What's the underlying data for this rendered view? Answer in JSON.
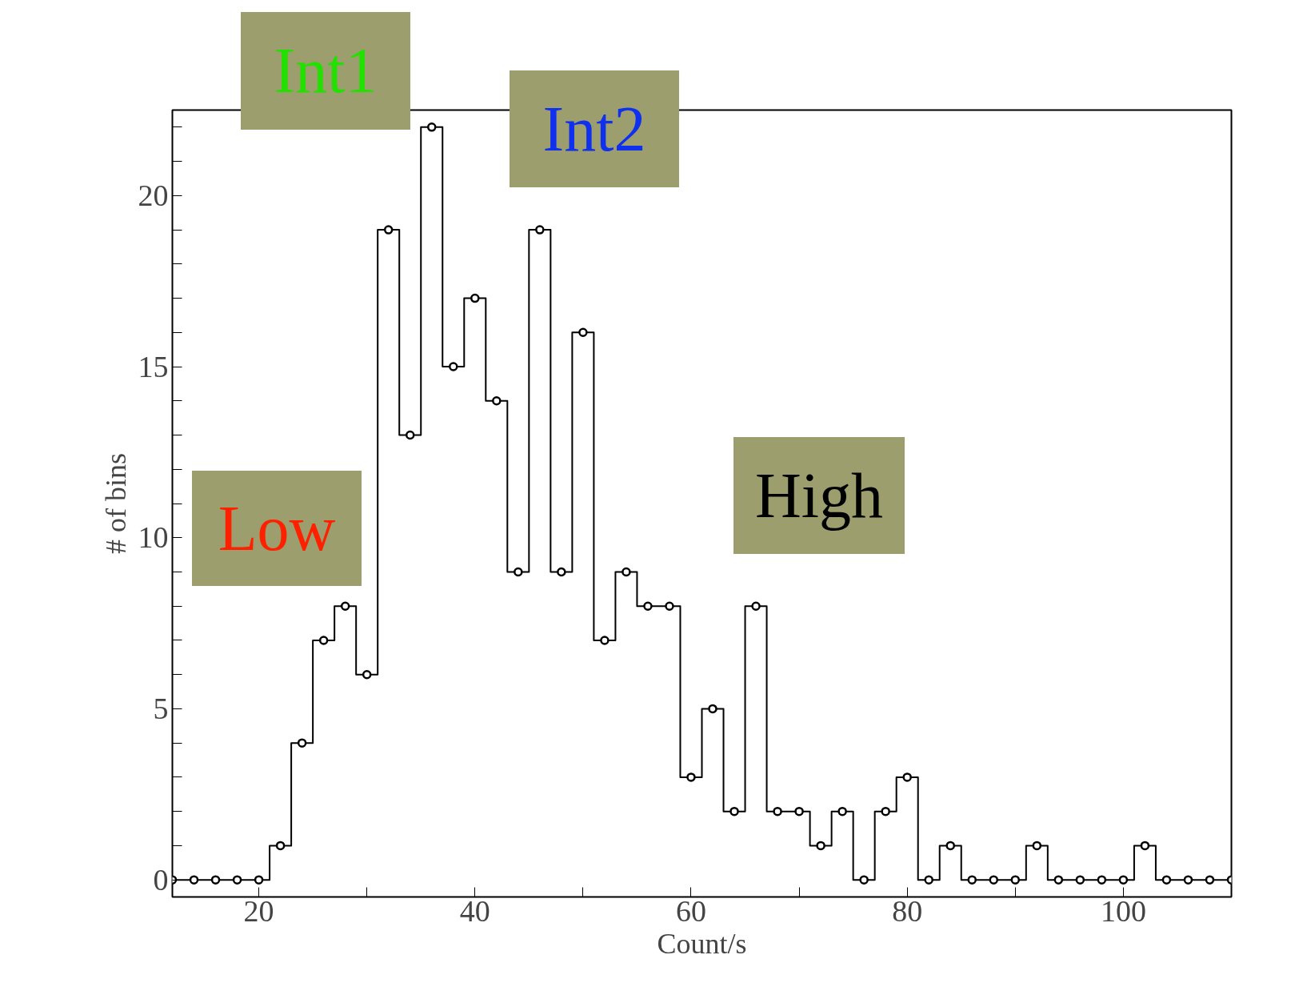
{
  "chart_data": {
    "type": "step",
    "xlabel": "Count/s",
    "ylabel": "# of bins",
    "x": [
      12,
      14,
      16,
      18,
      20,
      22,
      24,
      26,
      28,
      30,
      32,
      34,
      36,
      38,
      40,
      42,
      44,
      46,
      48,
      50,
      52,
      54,
      56,
      58,
      60,
      62,
      64,
      66,
      68,
      70,
      72,
      74,
      76,
      78,
      80,
      82,
      84,
      86,
      88,
      90,
      92,
      94,
      96,
      98,
      100,
      102,
      104,
      106,
      108,
      110
    ],
    "series": [
      {
        "color": "#000000",
        "values": [
          0,
          0,
          0,
          0,
          0,
          1,
          4,
          7,
          8,
          6,
          19,
          13,
          22,
          15,
          17,
          14,
          9,
          19,
          9,
          16,
          7,
          9,
          8,
          8,
          3,
          5,
          2,
          8,
          2,
          2,
          1,
          2,
          0,
          2,
          3,
          0,
          1,
          0,
          0,
          0,
          1,
          0,
          0,
          0,
          0,
          1,
          0,
          0,
          0,
          0
        ]
      }
    ],
    "marker": "circle",
    "line_style": "solid",
    "grid": false,
    "xlim": [
      12,
      110
    ],
    "ylim": [
      -0.5,
      22.5
    ],
    "xticks": [
      20,
      {
        "value": 30,
        "label": null
      },
      40,
      {
        "value": 50,
        "label": null
      },
      60,
      {
        "value": 70,
        "label": null
      },
      80,
      {
        "value": 90,
        "label": null
      },
      100,
      {
        "value": 110,
        "label": null
      }
    ],
    "yticks": [
      0,
      {
        "value": 1,
        "label": null
      },
      {
        "value": 2,
        "label": null
      },
      {
        "value": 3,
        "label": null
      },
      {
        "value": 4,
        "label": null
      },
      5,
      {
        "value": 6,
        "label": null
      },
      {
        "value": 7,
        "label": null
      },
      {
        "value": 8,
        "label": null
      },
      {
        "value": 9,
        "label": null
      },
      10,
      {
        "value": 11,
        "label": null
      },
      {
        "value": 12,
        "label": null
      },
      {
        "value": 13,
        "label": null
      },
      {
        "value": 14,
        "label": null
      },
      15,
      {
        "value": 16,
        "label": null
      },
      {
        "value": 17,
        "label": null
      },
      {
        "value": 18,
        "label": null
      },
      {
        "value": 19,
        "label": null
      },
      20,
      {
        "value": 21,
        "label": null
      },
      {
        "value": 22,
        "label": null
      }
    ],
    "annotations": [
      "Int1",
      "Int2",
      "Low",
      "High"
    ]
  }
}
